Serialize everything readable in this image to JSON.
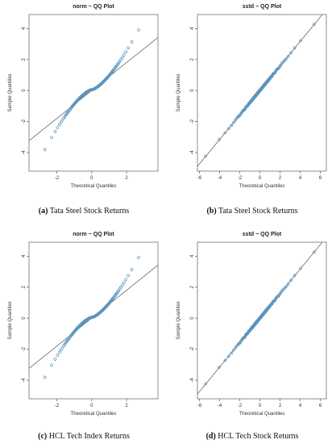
{
  "panels": [
    {
      "letter": "(a)",
      "caption": "Tata Steel Stock Returns"
    },
    {
      "letter": "(b)",
      "caption": "Tata Steel Stock Returns"
    },
    {
      "letter": "(c)",
      "caption": "HCL Tech Index Returns"
    },
    {
      "letter": "(d)",
      "caption": "HCL Tech Stock Returns"
    }
  ],
  "colors": {
    "points": "#5b95bf",
    "reference_line": "#555555",
    "frame": "#444444"
  },
  "chart_data": [
    {
      "type": "scatter",
      "title": "norm − QQ Plot",
      "xlabel": "Theoretical Quantiles",
      "ylabel": "Sample Quantiles",
      "xlim": [
        -3.6,
        3.8
      ],
      "ylim": [
        -5.2,
        4.9
      ],
      "xticks": [
        -2,
        0,
        2
      ],
      "yticks": [
        -4,
        -2,
        0,
        2,
        4
      ],
      "reference_line": {
        "intercept": 0.0,
        "slope": 0.9
      },
      "dist": "norm",
      "n_points": 140,
      "tail_power": 1.45
    },
    {
      "type": "scatter",
      "title": "sstd − QQ Plot",
      "xlabel": "Theoretical Quantiles",
      "ylabel": "Sample Quantiles",
      "xlim": [
        -6.2,
        6.6
      ],
      "ylim": [
        -5.2,
        4.9
      ],
      "xticks": [
        -6,
        -4,
        -2,
        0,
        2,
        4,
        6
      ],
      "yticks": [
        -4,
        -2,
        0,
        2,
        4
      ],
      "reference_line": {
        "intercept": 0.0,
        "slope": 0.79
      },
      "dist": "sstd",
      "n_points": 160,
      "tail_power": 1.0
    },
    {
      "type": "scatter",
      "title": "norm − QQ Plot",
      "xlabel": "Theoretical Quantiles",
      "ylabel": "Sample Quantiles",
      "xlim": [
        -3.6,
        3.8
      ],
      "ylim": [
        -5.2,
        4.9
      ],
      "xticks": [
        -2,
        0,
        2
      ],
      "yticks": [
        -4,
        -2,
        0,
        2,
        4
      ],
      "reference_line": {
        "intercept": 0.0,
        "slope": 0.9
      },
      "dist": "norm",
      "n_points": 140,
      "tail_power": 1.45
    },
    {
      "type": "scatter",
      "title": "sstd − QQ Plot",
      "xlabel": "Theoretical Quantiles",
      "ylabel": "Sample Quantiles",
      "xlim": [
        -6.2,
        6.6
      ],
      "ylim": [
        -5.2,
        4.9
      ],
      "xticks": [
        -6,
        -4,
        -2,
        0,
        2,
        4,
        6
      ],
      "yticks": [
        -4,
        -2,
        0,
        2,
        4
      ],
      "reference_line": {
        "intercept": 0.0,
        "slope": 0.79
      },
      "dist": "sstd",
      "n_points": 160,
      "tail_power": 1.0
    }
  ]
}
